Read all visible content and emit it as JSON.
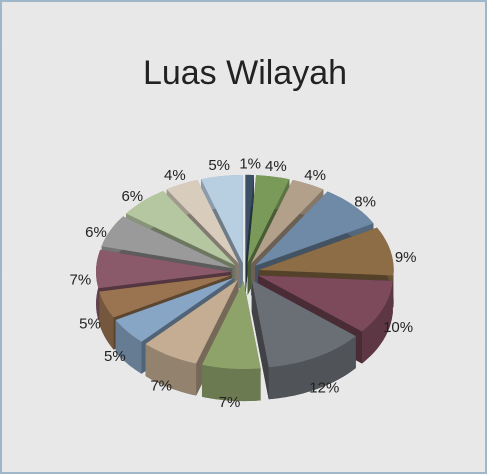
{
  "chart_data": {
    "type": "pie",
    "title": "Luas Wilayah",
    "values": [
      1,
      4,
      4,
      8,
      9,
      10,
      12,
      7,
      7,
      5,
      5,
      7,
      6,
      6,
      4,
      5
    ],
    "value_labels": [
      "1%",
      "4%",
      "4%",
      "8%",
      "9%",
      "10%",
      "12%",
      "7%",
      "7%",
      "5%",
      "5%",
      "7%",
      "6%",
      "6%",
      "4%",
      "5%"
    ],
    "colors": [
      "#3d5166",
      "#7a9a5a",
      "#b3a08a",
      "#6f8aa6",
      "#8c6d46",
      "#7c4a5a",
      "#6a6e75",
      "#8ea36a",
      "#c4ad93",
      "#87a5c4",
      "#9a7450",
      "#8a5a6a",
      "#9a9a9a",
      "#b5c7a0",
      "#d8ccbc",
      "#b8cfe2"
    ]
  }
}
